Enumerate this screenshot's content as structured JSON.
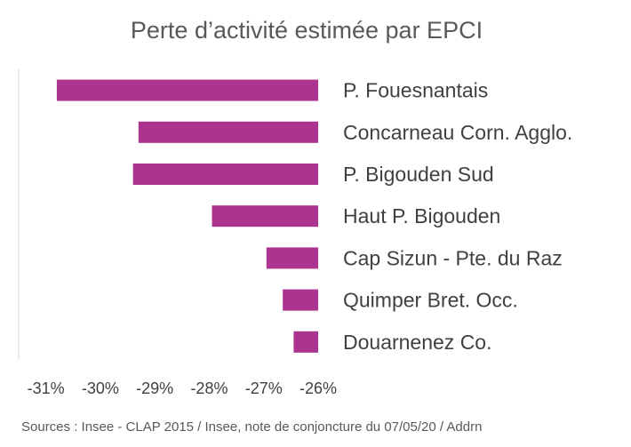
{
  "chart_data": {
    "type": "bar",
    "orientation": "horizontal",
    "title": "Perte d’activité estimée par EPCI",
    "categories": [
      "P. Fouesnantais",
      "Concarneau Corn. Agglo.",
      "P. Bigouden Sud",
      "Haut P. Bigouden",
      "Cap Sizun - Pte. du Raz",
      "Quimper Bret. Occ.",
      "Douarnenez Co."
    ],
    "values": [
      -30.8,
      -29.3,
      -29.4,
      -27.95,
      -26.95,
      -26.65,
      -26.45
    ],
    "xlim": [
      -31.5,
      -26
    ],
    "xticks": [
      -31,
      -30,
      -29,
      -28,
      -27,
      -26
    ],
    "xtick_labels": [
      "-31%",
      "-30%",
      "-29%",
      "-28%",
      "-27%",
      "-26%"
    ],
    "grid": false,
    "bar_color": "#ab3491",
    "source": "Sources : Insee - CLAP 2015 / Insee, note de conjoncture du 07/05/20 / Addrn"
  }
}
